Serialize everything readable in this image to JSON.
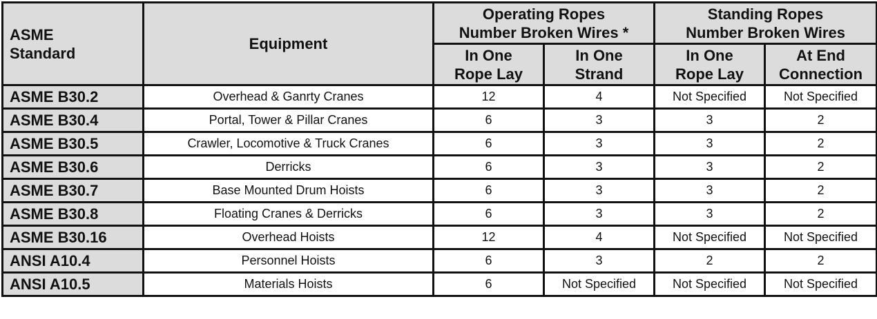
{
  "header": {
    "standard_col": [
      "ASME",
      "Standard"
    ],
    "equipment_col": "Equipment",
    "operating_group": [
      "Operating Ropes",
      "Number Broken Wires *"
    ],
    "standing_group": [
      "Standing Ropes",
      "Number Broken Wires"
    ],
    "sub": {
      "op_lay": [
        "In One",
        "Rope Lay"
      ],
      "op_strand": [
        "In One",
        "Strand"
      ],
      "st_lay": [
        "In One",
        "Rope Lay"
      ],
      "st_end": [
        "At End",
        "Connection"
      ]
    }
  },
  "rows": [
    {
      "standard": "ASME B30.2",
      "equipment": "Overhead & Ganrty Cranes",
      "op_lay": "12",
      "op_strand": "4",
      "st_lay": "Not Specified",
      "st_end": "Not Specified"
    },
    {
      "standard": "ASME B30.4",
      "equipment": "Portal, Tower & Pillar Cranes",
      "op_lay": "6",
      "op_strand": "3",
      "st_lay": "3",
      "st_end": "2"
    },
    {
      "standard": "ASME B30.5",
      "equipment": "Crawler, Locomotive & Truck Cranes",
      "op_lay": "6",
      "op_strand": "3",
      "st_lay": "3",
      "st_end": "2"
    },
    {
      "standard": "ASME B30.6",
      "equipment": "Derricks",
      "op_lay": "6",
      "op_strand": "3",
      "st_lay": "3",
      "st_end": "2"
    },
    {
      "standard": "ASME B30.7",
      "equipment": "Base Mounted Drum Hoists",
      "op_lay": "6",
      "op_strand": "3",
      "st_lay": "3",
      "st_end": "2"
    },
    {
      "standard": "ASME B30.8",
      "equipment": "Floating Cranes & Derricks",
      "op_lay": "6",
      "op_strand": "3",
      "st_lay": "3",
      "st_end": "2"
    },
    {
      "standard": "ASME B30.16",
      "equipment": "Overhead Hoists",
      "op_lay": "12",
      "op_strand": "4",
      "st_lay": "Not Specified",
      "st_end": "Not Specified"
    },
    {
      "standard": "ANSI A10.4",
      "equipment": "Personnel Hoists",
      "op_lay": "6",
      "op_strand": "3",
      "st_lay": "2",
      "st_end": "2"
    },
    {
      "standard": "ANSI A10.5",
      "equipment": "Materials Hoists",
      "op_lay": "6",
      "op_strand": "Not Specified",
      "st_lay": "Not Specified",
      "st_end": "Not Specified"
    }
  ]
}
